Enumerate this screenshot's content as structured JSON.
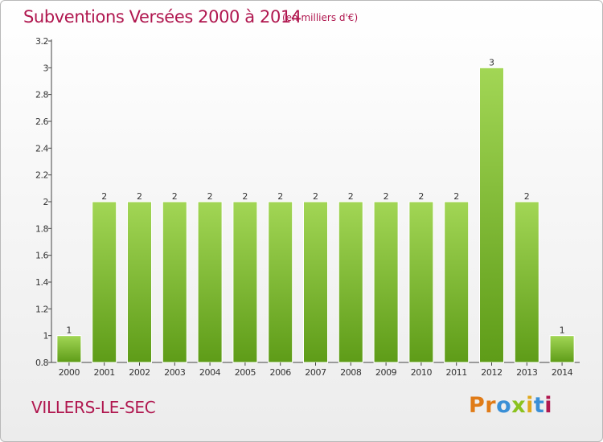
{
  "header": {
    "title": "Subventions Versées 2000 à 2014",
    "unit": "(en milliers d'€)"
  },
  "footer": {
    "commune": "VILLERS-LE-SEC",
    "brand_letters": [
      "P",
      "r",
      "o",
      "x",
      "i",
      "t",
      "i"
    ]
  },
  "colors": {
    "title": "#b0174f",
    "bar_top": "#a2d655",
    "bar_bottom": "#5e9c18",
    "axis": "#444444",
    "brand_letters": [
      "#e07b17",
      "#e07b17",
      "#3a8fd6",
      "#8bc21f",
      "#e0a81c",
      "#3a8fd6",
      "#b0174f"
    ]
  },
  "chart_data": {
    "type": "bar",
    "categories": [
      "2000",
      "2001",
      "2002",
      "2003",
      "2004",
      "2005",
      "2006",
      "2007",
      "2008",
      "2009",
      "2010",
      "2011",
      "2012",
      "2013",
      "2014"
    ],
    "values": [
      1,
      2,
      2,
      2,
      2,
      2,
      2,
      2,
      2,
      2,
      2,
      2,
      3,
      2,
      1
    ],
    "data_labels": [
      "1",
      "2",
      "2",
      "2",
      "2",
      "2",
      "2",
      "2",
      "2",
      "2",
      "2",
      "2",
      "3",
      "2",
      "1"
    ],
    "ylim": [
      0.8,
      3.2
    ],
    "yticks": [
      0.8,
      1,
      1.2,
      1.4,
      1.6,
      1.8,
      2,
      2.2,
      2.4,
      2.6,
      2.8,
      3,
      3.2
    ],
    "ytick_labels": [
      "0.8",
      "1",
      "1.2",
      "1.4",
      "1.6",
      "1.8",
      "2",
      "2.2",
      "2.4",
      "2.6",
      "2.8",
      "3",
      "3.2"
    ],
    "grid": false,
    "legend": "none"
  }
}
